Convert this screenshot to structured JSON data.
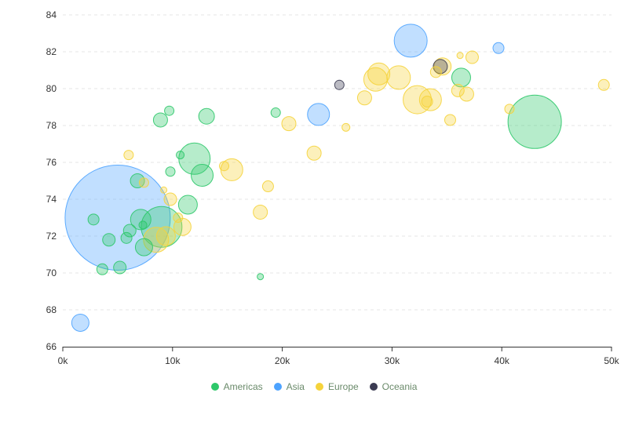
{
  "chart_data": {
    "type": "scatter",
    "title": "",
    "xlabel": "",
    "ylabel": "",
    "xlim": [
      0,
      50000
    ],
    "ylim": [
      66,
      84
    ],
    "grid": "horizontal-dashed",
    "legend_position": "bottom",
    "x_ticks": [
      "0k",
      "10k",
      "20k",
      "30k",
      "40k",
      "50k"
    ],
    "y_ticks": [
      "66",
      "68",
      "70",
      "72",
      "74",
      "76",
      "78",
      "80",
      "82",
      "84"
    ],
    "series": [
      {
        "name": "Americas",
        "color": "#2ec86a",
        "points": [
          {
            "x": 43000,
            "y": 78.2,
            "size": 34
          },
          {
            "x": 36300,
            "y": 80.6,
            "size": 12
          },
          {
            "x": 12000,
            "y": 76.2,
            "size": 20
          },
          {
            "x": 12700,
            "y": 75.3,
            "size": 14
          },
          {
            "x": 13100,
            "y": 78.5,
            "size": 10
          },
          {
            "x": 9700,
            "y": 78.8,
            "size": 6
          },
          {
            "x": 8900,
            "y": 78.3,
            "size": 9
          },
          {
            "x": 9800,
            "y": 75.5,
            "size": 6
          },
          {
            "x": 10700,
            "y": 76.4,
            "size": 5
          },
          {
            "x": 11400,
            "y": 73.7,
            "size": 12
          },
          {
            "x": 9000,
            "y": 72.5,
            "size": 26
          },
          {
            "x": 7100,
            "y": 72.9,
            "size": 13
          },
          {
            "x": 6800,
            "y": 75.0,
            "size": 9
          },
          {
            "x": 7300,
            "y": 72.6,
            "size": 5
          },
          {
            "x": 7400,
            "y": 71.4,
            "size": 11
          },
          {
            "x": 5800,
            "y": 71.9,
            "size": 7
          },
          {
            "x": 6100,
            "y": 72.3,
            "size": 8
          },
          {
            "x": 4200,
            "y": 71.8,
            "size": 8
          },
          {
            "x": 2800,
            "y": 72.9,
            "size": 7
          },
          {
            "x": 3600,
            "y": 70.2,
            "size": 7
          },
          {
            "x": 5200,
            "y": 70.3,
            "size": 8
          },
          {
            "x": 19400,
            "y": 78.7,
            "size": 6
          },
          {
            "x": 18000,
            "y": 69.8,
            "size": 4
          }
        ]
      },
      {
        "name": "Asia",
        "color": "#4da3ff",
        "points": [
          {
            "x": 5000,
            "y": 73.0,
            "size": 67
          },
          {
            "x": 31700,
            "y": 82.6,
            "size": 21
          },
          {
            "x": 23300,
            "y": 78.6,
            "size": 14
          },
          {
            "x": 39700,
            "y": 82.2,
            "size": 7
          },
          {
            "x": 1600,
            "y": 67.3,
            "size": 11
          }
        ]
      },
      {
        "name": "Europe",
        "color": "#f5d33b",
        "points": [
          {
            "x": 28800,
            "y": 80.8,
            "size": 14
          },
          {
            "x": 28500,
            "y": 80.5,
            "size": 15
          },
          {
            "x": 30600,
            "y": 80.6,
            "size": 15
          },
          {
            "x": 32300,
            "y": 79.4,
            "size": 18
          },
          {
            "x": 33500,
            "y": 79.4,
            "size": 14
          },
          {
            "x": 33200,
            "y": 79.3,
            "size": 7
          },
          {
            "x": 34000,
            "y": 80.9,
            "size": 7
          },
          {
            "x": 34600,
            "y": 81.2,
            "size": 11
          },
          {
            "x": 36200,
            "y": 81.8,
            "size": 4
          },
          {
            "x": 37300,
            "y": 81.7,
            "size": 8
          },
          {
            "x": 36000,
            "y": 79.9,
            "size": 8
          },
          {
            "x": 36800,
            "y": 79.7,
            "size": 9
          },
          {
            "x": 35300,
            "y": 78.3,
            "size": 7
          },
          {
            "x": 40700,
            "y": 78.9,
            "size": 6
          },
          {
            "x": 49300,
            "y": 80.2,
            "size": 7
          },
          {
            "x": 27500,
            "y": 79.5,
            "size": 9
          },
          {
            "x": 25800,
            "y": 77.9,
            "size": 5
          },
          {
            "x": 20600,
            "y": 78.1,
            "size": 9
          },
          {
            "x": 22900,
            "y": 76.5,
            "size": 9
          },
          {
            "x": 15400,
            "y": 75.6,
            "size": 14
          },
          {
            "x": 14700,
            "y": 75.8,
            "size": 6
          },
          {
            "x": 18700,
            "y": 74.7,
            "size": 7
          },
          {
            "x": 18000,
            "y": 73.3,
            "size": 9
          },
          {
            "x": 6000,
            "y": 76.4,
            "size": 6
          },
          {
            "x": 7400,
            "y": 74.9,
            "size": 6
          },
          {
            "x": 9200,
            "y": 74.5,
            "size": 4
          },
          {
            "x": 9800,
            "y": 74.0,
            "size": 8
          },
          {
            "x": 10500,
            "y": 73.0,
            "size": 6
          },
          {
            "x": 10900,
            "y": 72.5,
            "size": 11
          },
          {
            "x": 8500,
            "y": 71.8,
            "size": 16
          },
          {
            "x": 9400,
            "y": 72.0,
            "size": 12
          }
        ]
      },
      {
        "name": "Oceania",
        "color": "#3b3b52",
        "points": [
          {
            "x": 34400,
            "y": 81.2,
            "size": 9
          },
          {
            "x": 25200,
            "y": 80.2,
            "size": 6
          }
        ]
      }
    ]
  }
}
